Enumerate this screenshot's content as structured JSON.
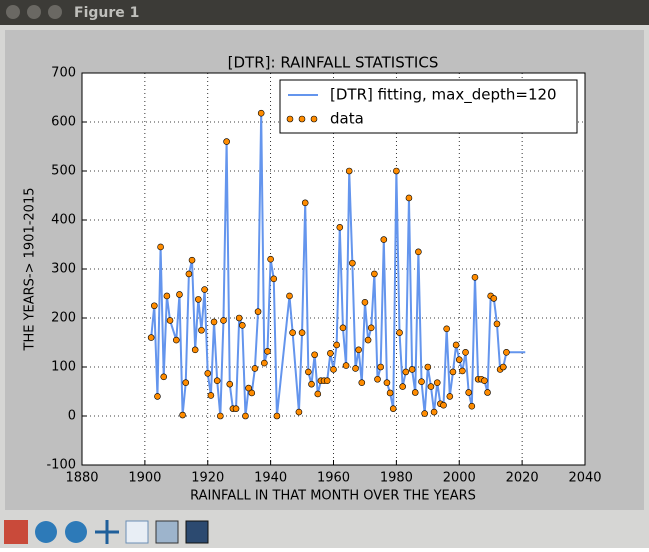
{
  "window": {
    "title": "Figure 1"
  },
  "chart_data": {
    "type": "line",
    "title": "[DTR]: RAINFALL STATISTICS",
    "x_label": "RAINFALL IN THAT MONTH OVER THE YEARS",
    "y_label": "THE YEARS-> 1901-2015",
    "xlim": [
      1880,
      2040
    ],
    "xticks": [
      1880,
      1900,
      1920,
      1940,
      1960,
      1980,
      2000,
      2020,
      2040
    ],
    "ylim": [
      -100,
      700
    ],
    "yticks": [
      -100,
      0,
      100,
      200,
      300,
      400,
      500,
      600,
      700
    ],
    "grid": true,
    "legend": "upper right",
    "series": [
      {
        "name": "[DTR] fitting, max_depth=120",
        "style": "line",
        "color": "#6495ed",
        "x": [
          1902,
          1903,
          1904,
          1905,
          1906,
          1907,
          1908,
          1910,
          1911,
          1912,
          1913,
          1914,
          1915,
          1916,
          1917,
          1918,
          1919,
          1920,
          1921,
          1922,
          1923,
          1924,
          1925,
          1926,
          1927,
          1928,
          1929,
          1930,
          1931,
          1932,
          1933,
          1934,
          1935,
          1936,
          1937,
          1938,
          1939,
          1940,
          1941,
          1942,
          1946,
          1947,
          1949,
          1950,
          1951,
          1952,
          1953,
          1954,
          1955,
          1956,
          1957,
          1958,
          1959,
          1960,
          1961,
          1962,
          1963,
          1964,
          1965,
          1966,
          1967,
          1968,
          1969,
          1970,
          1971,
          1972,
          1973,
          1974,
          1975,
          1976,
          1977,
          1978,
          1979,
          1980,
          1981,
          1982,
          1983,
          1984,
          1985,
          1986,
          1987,
          1988,
          1989,
          1990,
          1991,
          1992,
          1993,
          1994,
          1995,
          1996,
          1997,
          1998,
          1999,
          2000,
          2001,
          2002,
          2003,
          2004,
          2005,
          2006,
          2007,
          2008,
          2009,
          2010,
          2011,
          2012,
          2013,
          2014,
          2015,
          2021
        ],
        "values": [
          160,
          225,
          40,
          345,
          80,
          245,
          195,
          155,
          248,
          2,
          68,
          290,
          318,
          135,
          238,
          175,
          258,
          87,
          42,
          192,
          72,
          0,
          195,
          560,
          65,
          15,
          15,
          200,
          185,
          0,
          57,
          47,
          97,
          213,
          618,
          108,
          132,
          320,
          280,
          0,
          245,
          170,
          8,
          170,
          435,
          90,
          65,
          125,
          45,
          72,
          72,
          72,
          128,
          95,
          145,
          385,
          180,
          103,
          500,
          312,
          97,
          135,
          68,
          232,
          155,
          180,
          290,
          75,
          100,
          360,
          68,
          47,
          15,
          500,
          170,
          60,
          90,
          445,
          95,
          48,
          335,
          70,
          5,
          100,
          60,
          8,
          68,
          25,
          22,
          178,
          40,
          90,
          145,
          115,
          92,
          130,
          48,
          20,
          283,
          75,
          75,
          72,
          48,
          245,
          240,
          188,
          95,
          100,
          130,
          130
        ]
      },
      {
        "name": "data",
        "style": "scatter",
        "color": "#ff8c00",
        "x": [
          1902,
          1903,
          1904,
          1905,
          1906,
          1907,
          1908,
          1910,
          1911,
          1912,
          1913,
          1914,
          1915,
          1916,
          1917,
          1918,
          1919,
          1920,
          1921,
          1922,
          1923,
          1924,
          1925,
          1926,
          1927,
          1928,
          1929,
          1930,
          1931,
          1932,
          1933,
          1934,
          1935,
          1936,
          1937,
          1938,
          1939,
          1940,
          1941,
          1942,
          1946,
          1947,
          1949,
          1950,
          1951,
          1952,
          1953,
          1954,
          1955,
          1956,
          1957,
          1958,
          1959,
          1960,
          1961,
          1962,
          1963,
          1964,
          1965,
          1966,
          1967,
          1968,
          1969,
          1970,
          1971,
          1972,
          1973,
          1974,
          1975,
          1976,
          1977,
          1978,
          1979,
          1980,
          1981,
          1982,
          1983,
          1984,
          1985,
          1986,
          1987,
          1988,
          1989,
          1990,
          1991,
          1992,
          1993,
          1994,
          1995,
          1996,
          1997,
          1998,
          1999,
          2000,
          2001,
          2002,
          2003,
          2004,
          2005,
          2006,
          2007,
          2008,
          2009,
          2010,
          2011,
          2012,
          2013,
          2014,
          2015
        ],
        "values": [
          160,
          225,
          40,
          345,
          80,
          245,
          195,
          155,
          248,
          2,
          68,
          290,
          318,
          135,
          238,
          175,
          258,
          87,
          42,
          192,
          72,
          0,
          195,
          560,
          65,
          15,
          15,
          200,
          185,
          0,
          57,
          47,
          97,
          213,
          618,
          108,
          132,
          320,
          280,
          0,
          245,
          170,
          8,
          170,
          435,
          90,
          65,
          125,
          45,
          72,
          72,
          72,
          128,
          95,
          145,
          385,
          180,
          103,
          500,
          312,
          97,
          135,
          68,
          232,
          155,
          180,
          290,
          75,
          100,
          360,
          68,
          47,
          15,
          500,
          170,
          60,
          90,
          445,
          95,
          48,
          335,
          70,
          5,
          100,
          60,
          8,
          68,
          25,
          22,
          178,
          40,
          90,
          145,
          115,
          92,
          130,
          48,
          20,
          283,
          75,
          75,
          72,
          48,
          245,
          240,
          188,
          95,
          100,
          130
        ]
      }
    ]
  }
}
